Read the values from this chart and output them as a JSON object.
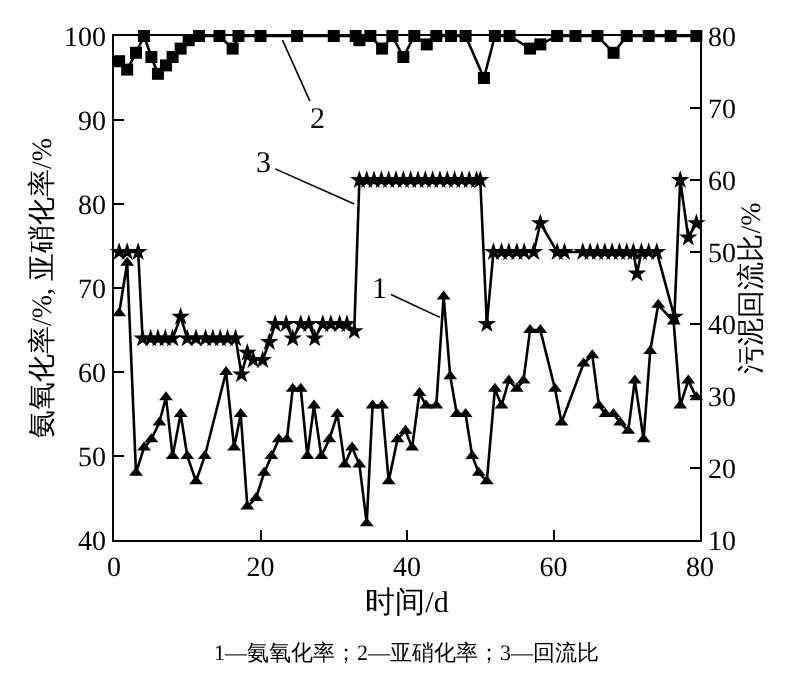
{
  "chart_data": {
    "type": "line",
    "xlabel": "时间/d",
    "ylabel": "氨氧化率/%, 亚硝化率/%",
    "y2label": "污泥回流比/%",
    "xlim": [
      0,
      80
    ],
    "xticks": [
      0,
      20,
      40,
      60,
      80
    ],
    "ylim": [
      40,
      100
    ],
    "yticks": [
      40,
      50,
      60,
      70,
      80,
      90,
      100
    ],
    "y2lim": [
      10,
      80
    ],
    "y2ticks": [
      10,
      20,
      30,
      40,
      50,
      60,
      70,
      80
    ],
    "line_style": "solid",
    "series": [
      {
        "marker": "triangle",
        "color": "#000000",
        "x": [
          0.7,
          1.8,
          3,
          4.1,
          5.1,
          6.2,
          7.1,
          8,
          9.1,
          10,
          11.2,
          12.4,
          15.3,
          16.4,
          17.3,
          18.2,
          19.4,
          20.5,
          21.5,
          22.5,
          23.6,
          24.4,
          25.5,
          26.4,
          27.3,
          28.3,
          29.4,
          30.5,
          31.5,
          32.5,
          33.5,
          34.5,
          35.3,
          36.6,
          37.5,
          38.7,
          39.8,
          40.7,
          41.7,
          42.6,
          44,
          45,
          45.9,
          46.8,
          48,
          48.9,
          49.8,
          50.9,
          52,
          52.9,
          53.9,
          55,
          55.9,
          56.8,
          58.2,
          60.2,
          61.1,
          64.1,
          65.3,
          66.2,
          67.1,
          68.2,
          69.1,
          70.2,
          71.1,
          72.3,
          73.2,
          74.3,
          76.4,
          77.3,
          78.4,
          79.5
        ],
        "values": [
          67,
          73,
          48,
          51,
          52,
          54,
          57,
          50,
          55,
          50,
          47,
          50,
          60,
          51,
          55,
          44,
          45,
          48,
          50,
          52,
          52,
          58,
          58,
          50,
          56,
          50,
          52,
          55,
          49,
          51,
          49,
          42,
          56,
          56,
          47,
          52,
          53,
          51,
          57.5,
          56,
          56,
          69,
          59.5,
          55,
          55,
          50,
          48,
          47,
          58,
          56,
          59,
          58,
          59,
          65,
          65,
          58,
          54,
          61,
          62,
          56,
          55,
          55,
          54,
          53,
          59,
          52,
          62.5,
          68,
          66,
          56,
          59,
          57
        ]
      },
      {
        "marker": "square",
        "color": "#000000",
        "x": [
          0.7,
          1.8,
          3,
          4.1,
          5.1,
          6,
          7.1,
          8,
          9.1,
          10.2,
          11.6,
          14.4,
          16.2,
          17,
          20,
          25,
          30,
          33,
          33.5,
          35,
          36.6,
          38,
          39.5,
          41,
          42.7,
          44,
          46,
          48,
          50.5,
          52,
          54,
          56.8,
          58.2,
          60.5,
          63,
          66,
          68.2,
          70,
          73,
          76,
          79.5
        ],
        "values": [
          97,
          96,
          98,
          100,
          97.5,
          95.5,
          96.5,
          97.5,
          98.5,
          99.5,
          100,
          100,
          98.5,
          100,
          100,
          100,
          100,
          100,
          99.5,
          100,
          98.5,
          100,
          97.5,
          100,
          99,
          100,
          100,
          100,
          95,
          100,
          100,
          98.5,
          99,
          100,
          100,
          100,
          98,
          100,
          100,
          100,
          100
        ]
      },
      {
        "axis": "y2",
        "marker": "star",
        "color": "#000000",
        "x": [
          0.7,
          1.8,
          3.3,
          3.9,
          5,
          6,
          7,
          8,
          9.1,
          10,
          11.2,
          12.5,
          13.5,
          14.5,
          15.5,
          16.6,
          17.4,
          18.2,
          19,
          20.3,
          21.2,
          22,
          23.5,
          24.4,
          25.5,
          26.6,
          27.4,
          28.5,
          29.6,
          30.8,
          31.8,
          32.8,
          33.5,
          34.5,
          35.5,
          36.5,
          37.5,
          38.5,
          39.5,
          40.5,
          41.5,
          42.5,
          43.5,
          44.5,
          45.5,
          46.5,
          47.5,
          48.5,
          49.5,
          50,
          50.9,
          51.8,
          52.9,
          53.9,
          55,
          56,
          57.3,
          58.2,
          60.5,
          61.5,
          64,
          65,
          66,
          67,
          68,
          69,
          70,
          70.9,
          71.4,
          72,
          73,
          74.1,
          76.5,
          77.3,
          78.4,
          79.5
        ],
        "values": [
          50,
          50,
          50,
          38,
          38,
          38,
          38,
          38,
          41,
          38,
          38,
          38,
          38,
          38,
          38,
          38,
          33,
          36,
          35,
          35,
          37.5,
          40,
          40,
          38,
          40,
          40,
          38,
          40,
          40,
          40,
          40,
          39,
          60,
          60,
          60,
          60,
          60,
          60,
          60,
          60,
          60,
          60,
          60,
          60,
          60,
          60,
          60,
          60,
          60,
          60,
          40,
          50,
          50,
          50,
          50,
          50,
          50,
          54,
          50,
          50,
          50,
          50,
          50,
          50,
          50,
          50,
          50,
          50,
          47,
          50,
          50,
          50,
          41,
          60,
          52,
          54
        ]
      }
    ],
    "annotations": [
      {
        "text": "1",
        "x": 44.5,
        "y": 66.5
      },
      {
        "text": "2",
        "x": 23,
        "y": 99.5
      },
      {
        "text": "3",
        "x": 32.8,
        "y": 80
      },
      "1—氨氧化率；2—亚硝化率；3—回流比"
    ]
  }
}
